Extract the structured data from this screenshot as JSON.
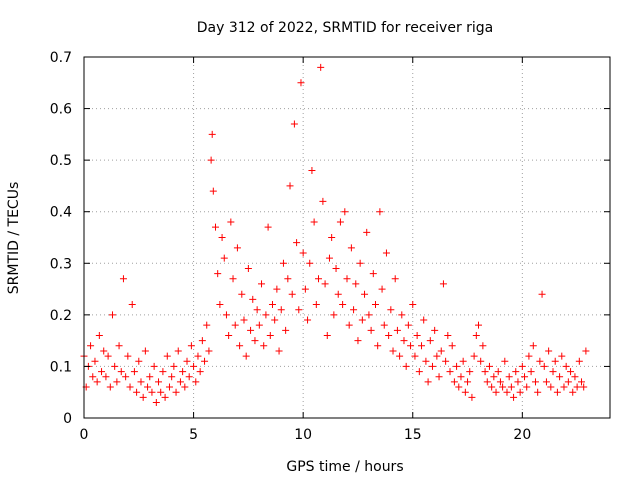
{
  "chart_data": {
    "type": "scatter",
    "title": "Day 312 of 2022, SRMTID for receiver riga",
    "xlabel": "GPS time / hours",
    "ylabel": "SRMTID / TECUs",
    "xlim": [
      0,
      24
    ],
    "ylim": [
      0,
      0.7
    ],
    "xticks": [
      "0",
      "5",
      "10",
      "15",
      "20"
    ],
    "yticks": [
      "0",
      "0.1",
      "0.2",
      "0.3",
      "0.4",
      "0.5",
      "0.6",
      "0.7"
    ],
    "grid": true,
    "marker": "+",
    "color": "#ff0000",
    "series": [
      {
        "name": "SRMTID",
        "x": [
          0.0,
          0.1,
          0.2,
          0.3,
          0.4,
          0.5,
          0.6,
          0.7,
          0.8,
          0.9,
          1.0,
          1.1,
          1.2,
          1.3,
          1.4,
          1.5,
          1.6,
          1.7,
          1.8,
          1.9,
          2.0,
          2.1,
          2.2,
          2.3,
          2.4,
          2.5,
          2.6,
          2.7,
          2.8,
          2.9,
          3.0,
          3.1,
          3.2,
          3.3,
          3.4,
          3.5,
          3.6,
          3.7,
          3.8,
          3.9,
          4.0,
          4.1,
          4.2,
          4.3,
          4.4,
          4.5,
          4.6,
          4.7,
          4.8,
          4.9,
          5.0,
          5.1,
          5.2,
          5.3,
          5.4,
          5.5,
          5.6,
          5.7,
          5.8,
          5.85,
          5.9,
          6.0,
          6.1,
          6.2,
          6.3,
          6.4,
          6.5,
          6.6,
          6.7,
          6.8,
          6.9,
          7.0,
          7.1,
          7.2,
          7.3,
          7.4,
          7.5,
          7.6,
          7.7,
          7.8,
          7.9,
          8.0,
          8.1,
          8.2,
          8.3,
          8.4,
          8.5,
          8.6,
          8.7,
          8.8,
          8.9,
          9.0,
          9.1,
          9.2,
          9.3,
          9.4,
          9.5,
          9.6,
          9.7,
          9.8,
          9.9,
          10.0,
          10.1,
          10.2,
          10.3,
          10.4,
          10.5,
          10.6,
          10.7,
          10.8,
          10.9,
          11.0,
          11.1,
          11.2,
          11.3,
          11.4,
          11.5,
          11.6,
          11.7,
          11.8,
          11.9,
          12.0,
          12.1,
          12.2,
          12.3,
          12.4,
          12.5,
          12.6,
          12.7,
          12.8,
          12.9,
          13.0,
          13.1,
          13.2,
          13.3,
          13.4,
          13.5,
          13.6,
          13.7,
          13.8,
          13.9,
          14.0,
          14.1,
          14.2,
          14.3,
          14.4,
          14.5,
          14.6,
          14.7,
          14.8,
          14.9,
          15.0,
          15.1,
          15.2,
          15.3,
          15.4,
          15.5,
          15.6,
          15.7,
          15.8,
          15.9,
          16.0,
          16.1,
          16.2,
          16.3,
          16.4,
          16.5,
          16.6,
          16.7,
          16.8,
          16.9,
          17.0,
          17.1,
          17.2,
          17.3,
          17.4,
          17.5,
          17.6,
          17.7,
          17.8,
          17.9,
          18.0,
          18.1,
          18.2,
          18.3,
          18.4,
          18.5,
          18.6,
          18.7,
          18.8,
          18.9,
          19.0,
          19.1,
          19.2,
          19.3,
          19.4,
          19.5,
          19.6,
          19.7,
          19.8,
          19.9,
          20.0,
          20.1,
          20.2,
          20.3,
          20.4,
          20.5,
          20.6,
          20.7,
          20.8,
          20.9,
          21.0,
          21.1,
          21.2,
          21.3,
          21.4,
          21.5,
          21.6,
          21.7,
          21.8,
          21.9,
          22.0,
          22.1,
          22.2,
          22.3,
          22.4,
          22.5,
          22.6,
          22.7,
          22.8,
          22.9
        ],
        "y": [
          0.12,
          0.06,
          0.1,
          0.14,
          0.08,
          0.11,
          0.07,
          0.16,
          0.09,
          0.13,
          0.08,
          0.12,
          0.06,
          0.2,
          0.1,
          0.07,
          0.14,
          0.09,
          0.27,
          0.08,
          0.12,
          0.06,
          0.22,
          0.09,
          0.05,
          0.11,
          0.07,
          0.04,
          0.13,
          0.06,
          0.08,
          0.05,
          0.1,
          0.03,
          0.07,
          0.05,
          0.09,
          0.04,
          0.12,
          0.06,
          0.08,
          0.1,
          0.05,
          0.13,
          0.07,
          0.09,
          0.06,
          0.11,
          0.08,
          0.14,
          0.1,
          0.07,
          0.12,
          0.09,
          0.15,
          0.11,
          0.18,
          0.13,
          0.5,
          0.55,
          0.44,
          0.37,
          0.28,
          0.22,
          0.35,
          0.31,
          0.2,
          0.16,
          0.38,
          0.27,
          0.18,
          0.33,
          0.14,
          0.24,
          0.19,
          0.12,
          0.29,
          0.17,
          0.23,
          0.15,
          0.21,
          0.18,
          0.26,
          0.14,
          0.2,
          0.37,
          0.16,
          0.22,
          0.19,
          0.25,
          0.13,
          0.21,
          0.3,
          0.17,
          0.27,
          0.45,
          0.24,
          0.57,
          0.34,
          0.21,
          0.65,
          0.32,
          0.25,
          0.19,
          0.3,
          0.48,
          0.38,
          0.22,
          0.27,
          0.68,
          0.42,
          0.26,
          0.16,
          0.31,
          0.35,
          0.2,
          0.29,
          0.24,
          0.38,
          0.22,
          0.4,
          0.27,
          0.18,
          0.33,
          0.21,
          0.26,
          0.15,
          0.3,
          0.19,
          0.24,
          0.36,
          0.2,
          0.17,
          0.28,
          0.22,
          0.14,
          0.4,
          0.25,
          0.18,
          0.32,
          0.16,
          0.21,
          0.13,
          0.27,
          0.17,
          0.12,
          0.2,
          0.15,
          0.1,
          0.18,
          0.14,
          0.22,
          0.12,
          0.16,
          0.09,
          0.14,
          0.19,
          0.11,
          0.07,
          0.15,
          0.1,
          0.17,
          0.12,
          0.08,
          0.13,
          0.26,
          0.11,
          0.16,
          0.09,
          0.14,
          0.07,
          0.1,
          0.06,
          0.08,
          0.11,
          0.05,
          0.07,
          0.09,
          0.04,
          0.12,
          0.16,
          0.18,
          0.11,
          0.14,
          0.09,
          0.07,
          0.1,
          0.06,
          0.08,
          0.05,
          0.09,
          0.07,
          0.06,
          0.11,
          0.05,
          0.08,
          0.06,
          0.04,
          0.09,
          0.07,
          0.05,
          0.1,
          0.08,
          0.06,
          0.12,
          0.09,
          0.14,
          0.07,
          0.05,
          0.11,
          0.24,
          0.1,
          0.07,
          0.13,
          0.06,
          0.09,
          0.11,
          0.05,
          0.08,
          0.12,
          0.06,
          0.1,
          0.07,
          0.09,
          0.05,
          0.08,
          0.06,
          0.11,
          0.07,
          0.06,
          0.13
        ]
      }
    ]
  }
}
